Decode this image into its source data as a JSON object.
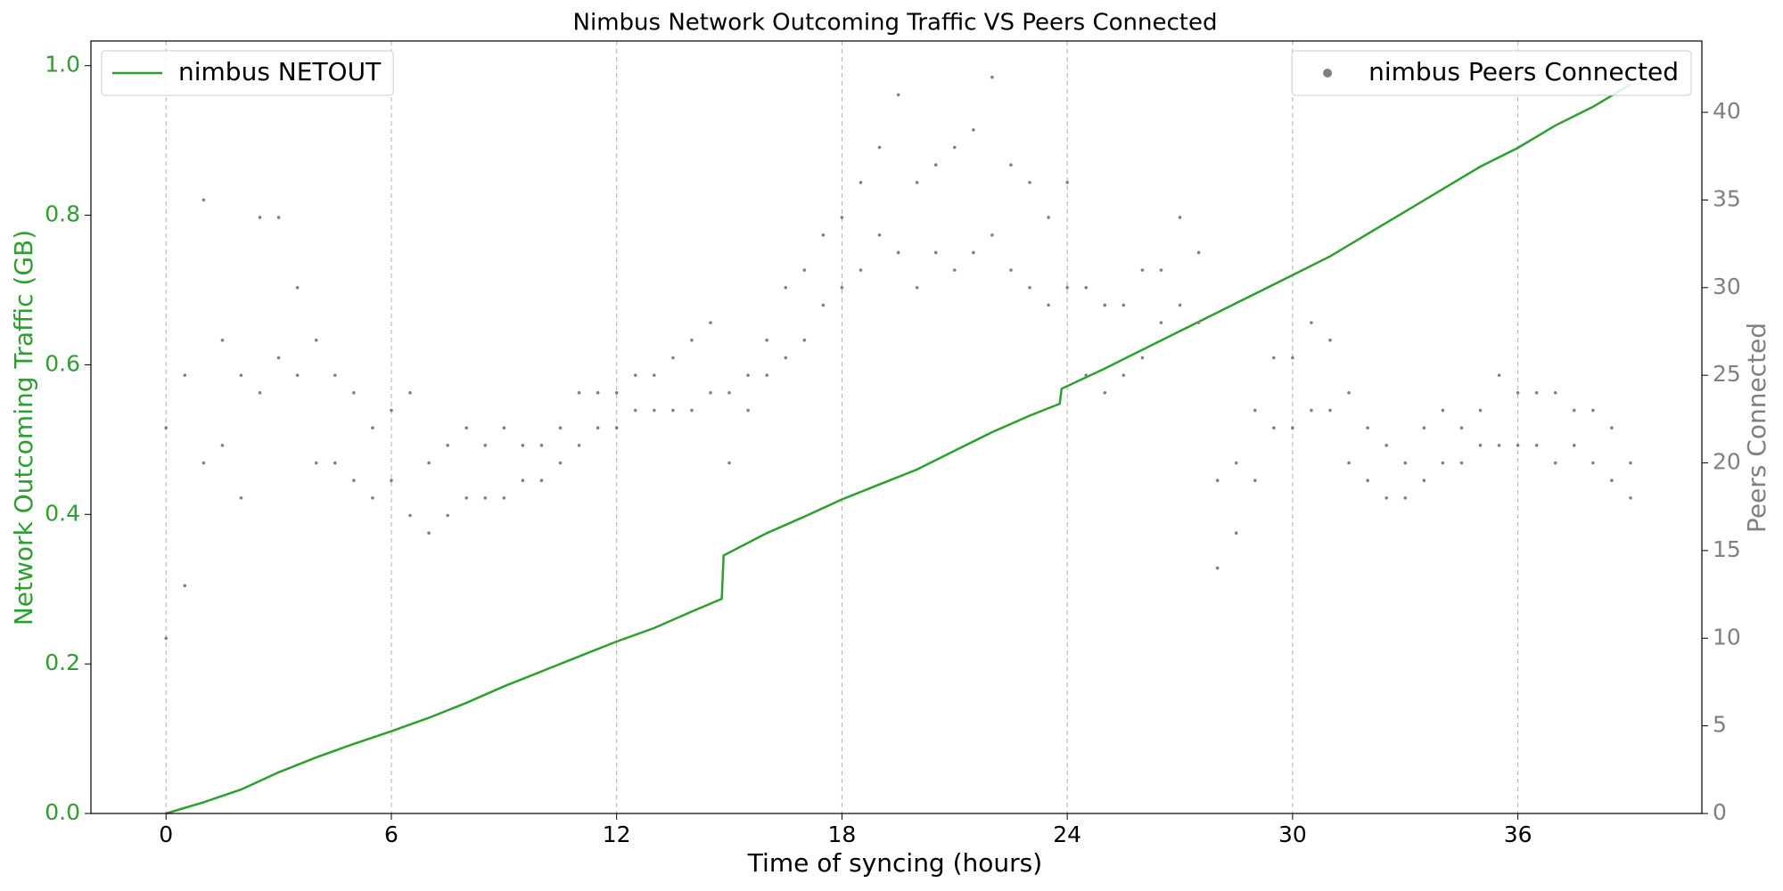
{
  "chart_data": {
    "type": "line",
    "title": "Nimbus Network Outcoming Traffic VS Peers Connected",
    "xlabel": "Time of syncing (hours)",
    "ylabel": "Network Outcoming Traffic (GB)",
    "y2label": "Peers Connected",
    "xlim": [
      -2.0,
      40.9
    ],
    "ylim": [
      0,
      1.033
    ],
    "y2lim": [
      0,
      44.07
    ],
    "xticks": [
      0,
      6,
      12,
      18,
      24,
      30,
      36
    ],
    "yticks": [
      {
        "value": 0,
        "label": "0.0"
      },
      0.2,
      0.4,
      0.6,
      0.8,
      {
        "value": 1,
        "label": "1.0"
      }
    ],
    "y2ticks": [
      0,
      5,
      10,
      15,
      20,
      25,
      30,
      35,
      40
    ],
    "grid": "x",
    "ycolor": "#2ca02c",
    "y2color": "#808080",
    "series": [
      {
        "name": "nimbus NETOUT",
        "type": "line",
        "color": "#2ca02c",
        "axis": "y",
        "legend": "upper left",
        "x": [
          0,
          1,
          2,
          3,
          4,
          5,
          6,
          7,
          8,
          9,
          10,
          11,
          12,
          13,
          14,
          14.8,
          14.85,
          16,
          17,
          18,
          19,
          20,
          21,
          22,
          23,
          23.8,
          23.85,
          25,
          26,
          27,
          28,
          29,
          30,
          31,
          32,
          33,
          34,
          35,
          36,
          37,
          38,
          39
        ],
        "values": [
          0,
          0.015,
          0.032,
          0.055,
          0.075,
          0.093,
          0.11,
          0.128,
          0.148,
          0.17,
          0.19,
          0.21,
          0.23,
          0.248,
          0.27,
          0.287,
          0.345,
          0.375,
          0.397,
          0.42,
          0.44,
          0.46,
          0.485,
          0.51,
          0.532,
          0.548,
          0.568,
          0.595,
          0.62,
          0.645,
          0.67,
          0.695,
          0.72,
          0.745,
          0.775,
          0.805,
          0.835,
          0.865,
          0.89,
          0.92,
          0.945,
          0.975
        ]
      },
      {
        "name": "nimbus Peers Connected",
        "type": "scatter",
        "color": "#808080",
        "axis": "y2",
        "legend": "upper right",
        "x": [
          0,
          0,
          0.5,
          0.5,
          1,
          1,
          1.5,
          1.5,
          2,
          2,
          2.5,
          2.5,
          3,
          3,
          3.5,
          3.5,
          4,
          4,
          4.5,
          4.5,
          5,
          5,
          5.5,
          5.5,
          6,
          6,
          6.5,
          6.5,
          7,
          7,
          7.5,
          7.5,
          8,
          8,
          8.5,
          8.5,
          9,
          9,
          9.5,
          9.5,
          10,
          10,
          10.5,
          10.5,
          11,
          11,
          11.5,
          11.5,
          12,
          12,
          12.5,
          12.5,
          13,
          13,
          13.5,
          13.5,
          14,
          14,
          14.5,
          14.5,
          15,
          15,
          15.5,
          15.5,
          16,
          16,
          16.5,
          16.5,
          17,
          17,
          17.5,
          17.5,
          18,
          18,
          18.5,
          18.5,
          19,
          19,
          19.5,
          19.5,
          20,
          20,
          20.5,
          20.5,
          21,
          21,
          21.5,
          21.5,
          22,
          22,
          22.5,
          22.5,
          23,
          23,
          23.5,
          23.5,
          24,
          24,
          24.5,
          24.5,
          25,
          25,
          25.5,
          25.5,
          26,
          26,
          26.5,
          26.5,
          27,
          27,
          27.5,
          27.5,
          28,
          28,
          28.5,
          28.5,
          29,
          29,
          29.5,
          29.5,
          30,
          30,
          30.5,
          30.5,
          31,
          31,
          31.5,
          31.5,
          32,
          32,
          32.5,
          32.5,
          33,
          33,
          33.5,
          33.5,
          34,
          34,
          34.5,
          34.5,
          35,
          35,
          35.5,
          35.5,
          36,
          36,
          36.5,
          36.5,
          37,
          37,
          37.5,
          37.5,
          38,
          38,
          38.5,
          38.5,
          39,
          39
        ],
        "values": [
          10,
          22,
          13,
          25,
          20,
          35,
          21,
          27,
          18,
          25,
          24,
          34,
          26,
          34,
          25,
          30,
          20,
          27,
          20,
          25,
          19,
          24,
          18,
          22,
          19,
          23,
          17,
          24,
          16,
          20,
          17,
          21,
          18,
          22,
          18,
          21,
          18,
          22,
          19,
          21,
          19,
          21,
          20,
          22,
          21,
          24,
          22,
          24,
          22,
          24,
          23,
          25,
          23,
          25,
          23,
          26,
          23,
          27,
          24,
          28,
          20,
          24,
          23,
          25,
          25,
          27,
          26,
          30,
          27,
          31,
          29,
          33,
          30,
          34,
          31,
          36,
          33,
          38,
          32,
          41,
          30,
          36,
          32,
          37,
          31,
          38,
          32,
          39,
          33,
          42,
          31,
          37,
          30,
          36,
          29,
          34,
          30,
          36,
          25,
          30,
          24,
          29,
          25,
          29,
          26,
          31,
          28,
          31,
          29,
          34,
          28,
          32,
          14,
          19,
          16,
          20,
          19,
          23,
          22,
          26,
          22,
          26,
          23,
          28,
          23,
          27,
          20,
          24,
          19,
          22,
          18,
          21,
          18,
          20,
          19,
          22,
          20,
          23,
          20,
          22,
          21,
          23,
          21,
          25,
          21,
          24,
          21,
          24,
          20,
          24,
          21,
          23,
          20,
          23,
          19,
          22,
          18,
          20
        ]
      }
    ]
  }
}
